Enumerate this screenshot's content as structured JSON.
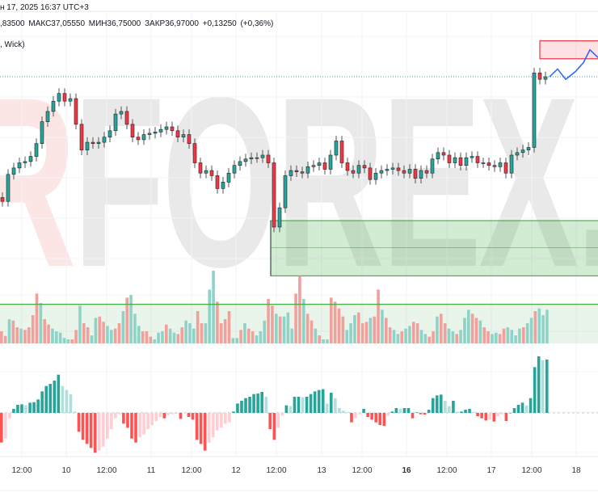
{
  "header": {
    "datetime": "н 17, 2025 16:37 UTC+3",
    "ohlc": ",83500  МАКС37,05550  МИН36,75000  ЗАКР36,97000  +0,13250 (+0,36%)",
    "indicator": ", Wick)"
  },
  "watermark": {
    "r": "R",
    "main": "FOREX",
    "tail": ".c"
  },
  "colors": {
    "up": "#26a69a",
    "down": "#f23645",
    "vol_up": "#8fd3c8",
    "vol_down": "#f2a09c",
    "zone_green": "#4caf50",
    "zone_red": "#f23645",
    "forecast": "#2962ff"
  },
  "time_axis": [
    "12:00",
    "10",
    "12:00",
    "11",
    "12:00",
    "12",
    "12:00",
    "13",
    "12:00",
    "16",
    "12:00",
    "17",
    "12:00",
    "18"
  ],
  "chart_data": {
    "type": "candlestick",
    "last_price": 36.97,
    "closes": [
      36.0,
      36.21,
      36.26,
      36.3,
      36.31,
      36.35,
      36.45,
      36.62,
      36.7,
      36.78,
      36.84,
      36.78,
      36.8,
      36.6,
      36.4,
      36.46,
      36.45,
      36.46,
      36.5,
      36.55,
      36.68,
      36.7,
      36.6,
      36.5,
      36.48,
      36.52,
      36.53,
      36.54,
      36.56,
      36.58,
      36.55,
      36.5,
      36.52,
      36.45,
      36.3,
      36.22,
      36.24,
      36.2,
      36.1,
      36.15,
      36.22,
      36.28,
      36.31,
      36.33,
      36.34,
      36.34,
      36.36,
      36.3,
      35.8,
      35.95,
      36.2,
      36.24,
      36.23,
      36.22,
      36.27,
      36.28,
      36.3,
      36.25,
      36.36,
      36.47,
      36.3,
      36.24,
      36.22,
      36.28,
      36.26,
      36.17,
      36.22,
      36.24,
      36.25,
      36.26,
      36.24,
      36.22,
      36.25,
      36.18,
      36.24,
      36.22,
      36.33,
      36.38,
      36.36,
      36.3,
      36.34,
      36.28,
      36.34,
      36.35,
      36.3,
      36.3,
      36.28,
      36.27,
      36.3,
      36.22,
      36.36,
      36.38,
      36.4,
      36.42,
      37.0,
      36.95,
      36.97
    ],
    "zones": [
      {
        "type": "supply",
        "from": 37.11,
        "to": 37.25
      },
      {
        "type": "demand",
        "from": 35.42,
        "to": 35.85,
        "mid": 35.64
      }
    ],
    "forecast": [
      36.97,
      37.03,
      36.95,
      37.01,
      37.08,
      37.18,
      37.12
    ],
    "volume": [
      45,
      28,
      90,
      85,
      60,
      55,
      50,
      60,
      105,
      185,
      150,
      90,
      70,
      55,
      45,
      40,
      20,
      15,
      15,
      50,
      140,
      75,
      60,
      30,
      95,
      100,
      80,
      65,
      50,
      55,
      75,
      120,
      170,
      180,
      110,
      65,
      45,
      45,
      25,
      15,
      40,
      45,
      70,
      55,
      40,
      35,
      60,
      85,
      75,
      55,
      120,
      75,
      75,
      200,
      270,
      155,
      75,
      90,
      120,
      20,
      20,
      50,
      75,
      55,
      45,
      30,
      45,
      85,
      165,
      140,
      110,
      100,
      100,
      115,
      55,
      185,
      250,
      165,
      110,
      85,
      55,
      30,
      15,
      15,
      170,
      155,
      130,
      100,
      50,
      75,
      105,
      115,
      75,
      80,
      95,
      100,
      200,
      125,
      95,
      60,
      50,
      35,
      45,
      55,
      65,
      80,
      75,
      50,
      35,
      25,
      45,
      100,
      110,
      75,
      55,
      45,
      35,
      50,
      95,
      125,
      110,
      95,
      85,
      60,
      45,
      35,
      40,
      35,
      55,
      60,
      50,
      30,
      55,
      60,
      75,
      95,
      120,
      130,
      105,
      125
    ],
    "volume_dir": "ddudduddddudduuuuuddudduudduudduduuuddduuuduudduuudduuudddduududduuudduduuuddudduduudddduuuddduddudduuduudduuddudduuduuuddudduudduuuuduuduu",
    "volume_ma_level": 145,
    "macd_hist": [
      -110,
      -95,
      -20,
      15,
      30,
      32,
      28,
      38,
      40,
      50,
      80,
      100,
      108,
      120,
      142,
      100,
      85,
      70,
      5,
      -70,
      -100,
      -115,
      -130,
      -148,
      -140,
      -125,
      -95,
      -60,
      -20,
      -5,
      -40,
      -55,
      -95,
      -110,
      -90,
      -80,
      -60,
      -45,
      -30,
      -15,
      -20,
      -8,
      -5,
      -3,
      -22,
      -2,
      -15,
      -25,
      -100,
      -115,
      -140,
      -110,
      -90,
      -65,
      -55,
      -40,
      -35,
      5,
      35,
      45,
      55,
      60,
      70,
      72,
      78,
      60,
      -60,
      -100,
      -55,
      -10,
      28,
      25,
      60,
      60,
      58,
      60,
      70,
      80,
      85,
      88,
      35,
      75,
      55,
      18,
      8,
      2,
      -35,
      -20,
      -5,
      15,
      -15,
      -25,
      -35,
      -45,
      -48,
      -10,
      5,
      18,
      15,
      18,
      18,
      -20,
      2,
      -5,
      -6,
      12,
      55,
      65,
      68,
      45,
      25,
      45,
      5,
      5,
      12,
      15,
      3,
      -12,
      -20,
      -28,
      -25,
      -32,
      -12,
      -5,
      -30,
      0,
      18,
      30,
      38,
      28,
      55,
      170,
      210,
      195,
      198
    ]
  }
}
